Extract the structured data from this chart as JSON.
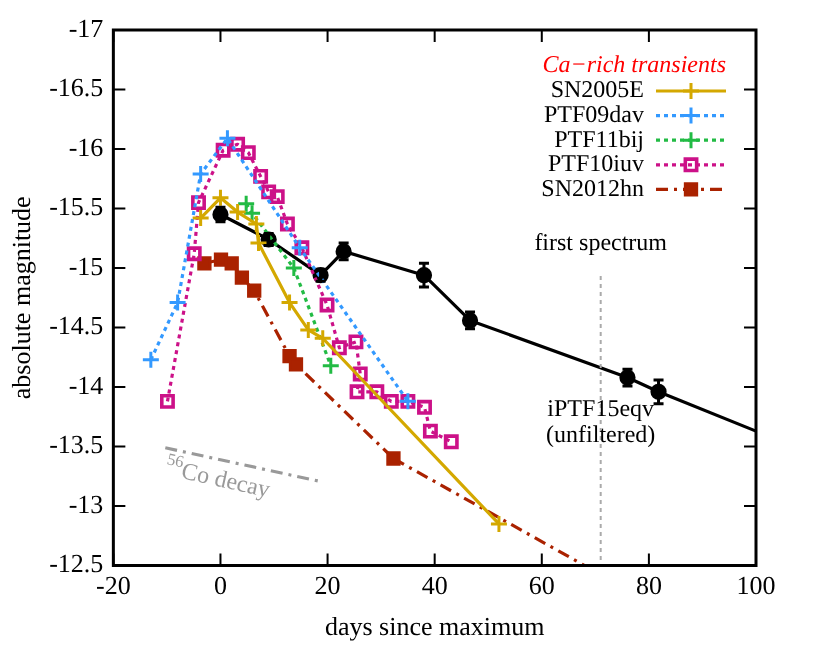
{
  "chart_data": {
    "type": "line",
    "xlabel": "days since maximum",
    "ylabel": "absolute magnitude",
    "legend_title": "Ca−rich transients",
    "legend": "top right",
    "grid": false,
    "xlim": [
      -20,
      100
    ],
    "xticks": [
      -20,
      0,
      20,
      40,
      60,
      80,
      100
    ],
    "ylim": [
      -12.5,
      -17
    ],
    "yticks": [
      -17,
      -16.5,
      -16,
      -15.5,
      -15,
      -14.5,
      -14,
      -13.5,
      -13,
      -12.5
    ],
    "series": [
      {
        "name": "SN2005E",
        "color": "#d4a800",
        "marker": "cross",
        "line_style": "solid",
        "x": [
          -3.7,
          0,
          3.2,
          6.7,
          7.1,
          12.9,
          16.4,
          19.1,
          52
        ],
        "values": [
          -15.42,
          -15.59,
          -15.47,
          -15.37,
          -15.21,
          -14.71,
          -14.48,
          -14.41,
          -12.85
        ]
      },
      {
        "name": "PTF09dav",
        "color": "#3399ff",
        "marker": "cross",
        "line_style": "dotted",
        "x": [
          -13,
          -8,
          -3.7,
          1.3,
          14.8,
          35
        ],
        "values": [
          -14.23,
          -14.71,
          -15.79,
          -16.09,
          -15.17,
          -13.88
        ]
      },
      {
        "name": "PTF11bij",
        "color": "#22bb44",
        "marker": "cross",
        "line_style": "dotted",
        "x": [
          4.8,
          5.9,
          13.7,
          20.6
        ],
        "values": [
          -15.54,
          -15.46,
          -15.0,
          -14.18
        ]
      },
      {
        "name": "PTF10iuv",
        "color": "#cc1188",
        "marker": "square",
        "line_style": "dotted",
        "x": [
          -9.9,
          -4.9,
          -4.1,
          0.5,
          3.2,
          5.2,
          7.5,
          9,
          10.6,
          12.5,
          15.2,
          19.9,
          22.2,
          25.3,
          26.1,
          25.5,
          29.2,
          31.9,
          35,
          38.1,
          39.2,
          43.1
        ],
        "values": [
          -13.88,
          -15.12,
          -15.55,
          -15.99,
          -16.04,
          -15.97,
          -15.77,
          -15.64,
          -15.6,
          -15.37,
          -15.17,
          -14.69,
          -14.33,
          -14.38,
          -14.11,
          -13.96,
          -13.96,
          -13.88,
          -13.88,
          -13.83,
          -13.63,
          -13.54
        ]
      },
      {
        "name": "SN2012hn",
        "color": "#aa2200",
        "marker": "square",
        "line_style": "dashed",
        "x": [
          -3,
          0.1,
          2.1,
          4,
          6.3,
          12.9,
          14.1,
          32.3
        ],
        "values": [
          -15.04,
          -15.07,
          -15.04,
          -14.92,
          -14.81,
          -14.26,
          -14.19,
          -13.4
        ]
      },
      {
        "color": "#aa2200",
        "marker": "none",
        "line_style": "dashed",
        "x": [
          32.3,
          68
        ],
        "values": [
          -13.4,
          -12.5
        ]
      },
      {
        "color": "#000000",
        "marker": "circle",
        "line_style": "solid",
        "x": [
          0,
          9,
          18.7,
          23,
          38,
          46.6,
          76,
          81.8
        ],
        "values": [
          -15.45,
          -15.24,
          -14.94,
          -15.14,
          -14.94,
          -14.56,
          -14.08,
          -13.96
        ],
        "errors": [
          0.06,
          0.05,
          0.05,
          0.07,
          0.1,
          0.07,
          0.07,
          0.1
        ]
      },
      {
        "color": "#000000",
        "marker": "none",
        "line_style": "solid",
        "x": [
          81.8,
          100
        ],
        "values": [
          -13.96,
          -13.63
        ]
      },
      {
        "color": "#999999",
        "marker": "none",
        "line_style": "dashed",
        "x": [
          -10.3,
          18.3
        ],
        "values": [
          -13.49,
          -13.21
        ]
      }
    ],
    "ref_lines": [
      {
        "axis": "x",
        "value": 71,
        "label": "first spectrum",
        "color": "#aaaaaa",
        "line_style": "dotted"
      }
    ],
    "annotations": [
      {
        "text": "iPTF15eqv\n(unfiltered)",
        "x": 71,
        "y": -13.7
      },
      "$^{56}$Co decay"
    ]
  }
}
